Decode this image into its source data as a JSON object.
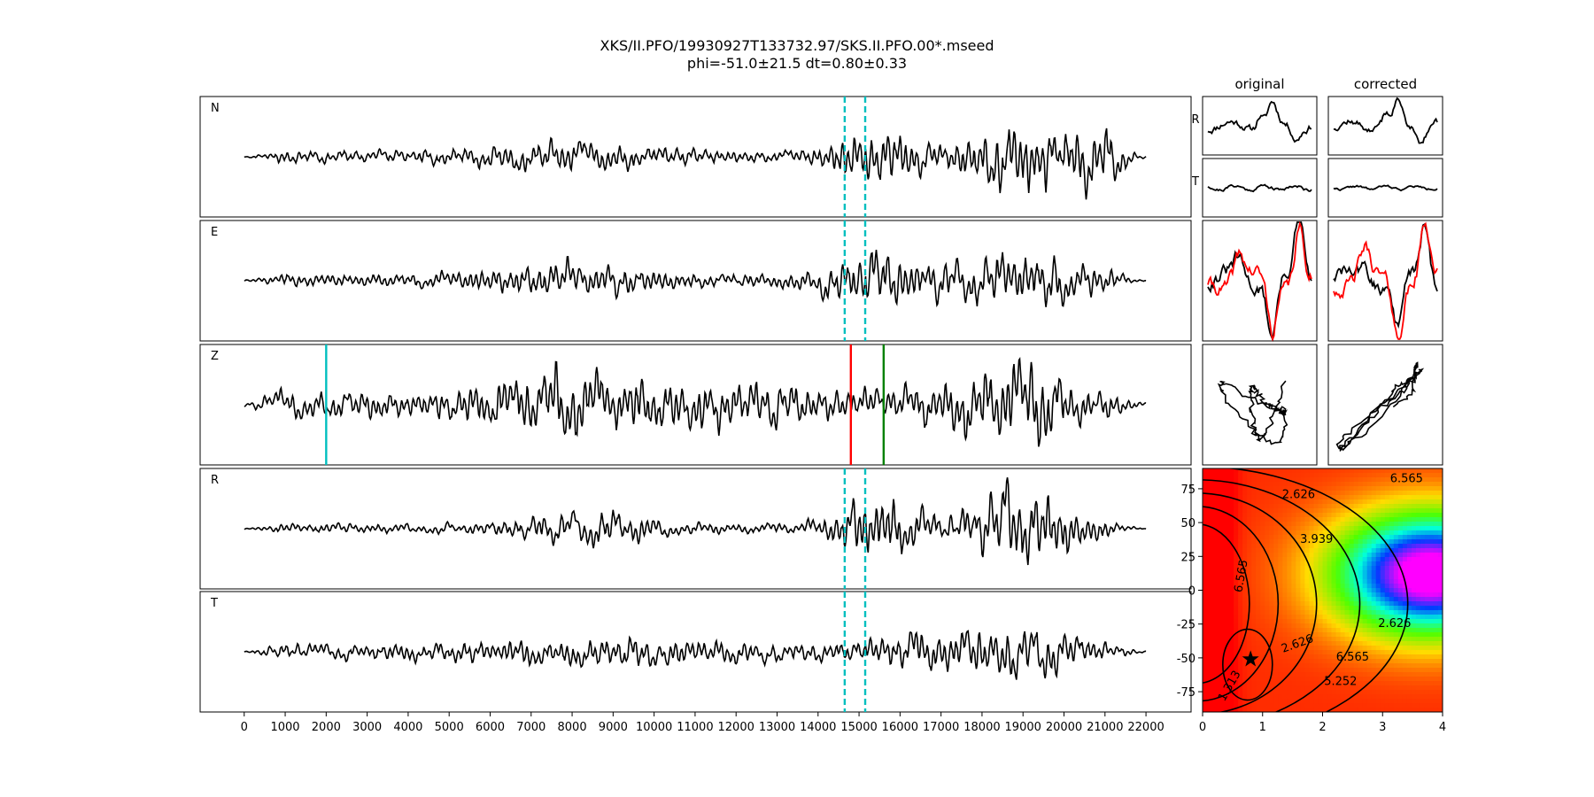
{
  "figure": {
    "title": "XKS/II.PFO/19930927T133732.97/SKS.II.PFO.00*.mseed",
    "subtitle": "phi=-51.0±21.5 dt=0.80±0.33",
    "col_original": "original",
    "col_corrected": "corrected"
  },
  "chart_data": [
    {
      "type": "line",
      "description_of": "seismogram traces",
      "components": [
        "N",
        "E",
        "Z",
        "R",
        "T"
      ],
      "x_ticks": [
        0,
        1000,
        2000,
        3000,
        4000,
        5000,
        6000,
        7000,
        8000,
        9000,
        10000,
        11000,
        12000,
        13000,
        14000,
        15000,
        16000,
        17000,
        18000,
        19000,
        20000,
        21000,
        22000
      ],
      "xlim": [
        -1075,
        23100
      ],
      "trace_x_range": [
        0,
        22000
      ],
      "window_markers": {
        "start": 14650,
        "end": 15150,
        "color": "#00bfbf",
        "style": "dashed",
        "panels": [
          "N",
          "E",
          "R",
          "T"
        ]
      },
      "phase_markers": [
        {
          "x": 2000,
          "color": "#00bfbf",
          "panel": "Z"
        },
        {
          "x": 14800,
          "color": "#ff0000",
          "panel": "Z"
        },
        {
          "x": 15600,
          "color": "#008000",
          "panel": "Z"
        }
      ],
      "grid": false
    },
    {
      "type": "line",
      "description_of": "particle motion and waveform comparison panels",
      "row_labels": [
        "R",
        "T"
      ],
      "colors": {
        "trace": "#000000",
        "overlay": "#ff0000"
      }
    },
    {
      "type": "heatmap",
      "description_of": "error surface with contours",
      "x_ticks": [
        0,
        1,
        2,
        3,
        4
      ],
      "y_ticks": [
        75,
        50,
        25,
        0,
        -25,
        -50,
        -75
      ],
      "xlim": [
        0,
        4
      ],
      "ylim": [
        -90,
        90
      ],
      "contour_labels": [
        "1.313",
        "2.626",
        "3.939",
        "5.252",
        "6.565"
      ],
      "best_fit": {
        "dt": 0.8,
        "phi": -51.0
      },
      "grid": false
    }
  ]
}
